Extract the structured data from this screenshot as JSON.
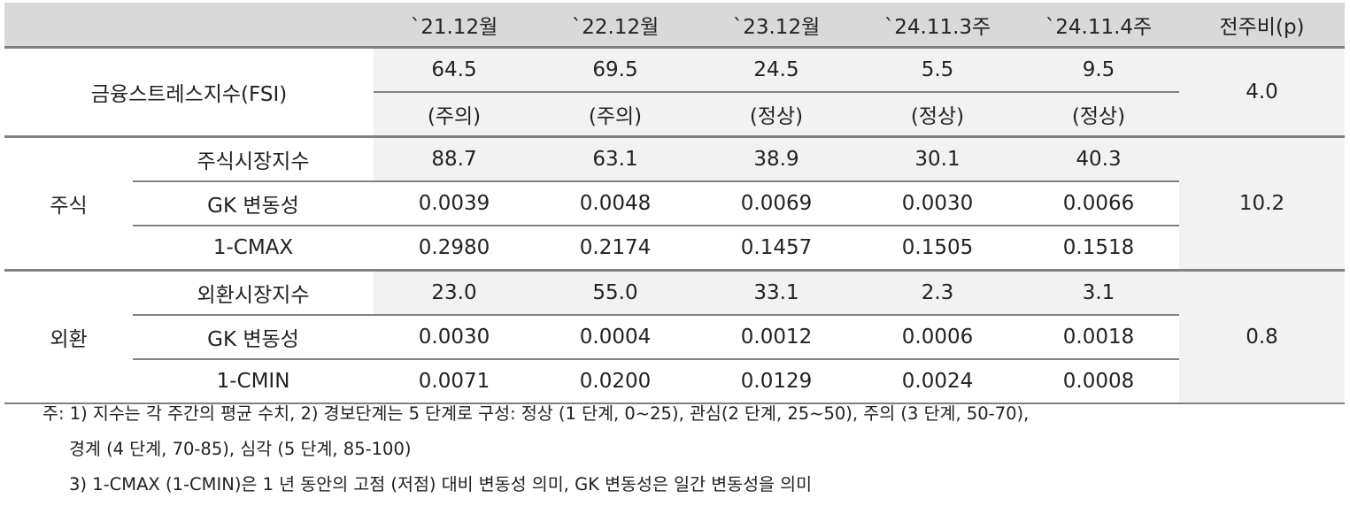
{
  "header": {
    "columns": [
      "`21.12월",
      "`22.12월",
      "`23.12월",
      "`24.11.3주",
      "`24.11.4주",
      "전주비(p)"
    ]
  },
  "fsi": {
    "label": "금융스트레스지수(FSI)",
    "values": [
      "64.5",
      "69.5",
      "24.5",
      "5.5",
      "9.5"
    ],
    "levels": [
      "(주의)",
      "(주의)",
      "(정상)",
      "(정상)",
      "(정상)"
    ],
    "change": "4.0"
  },
  "stock": {
    "label": "주식",
    "change": "10.2",
    "rows": [
      {
        "label": "주식시장지수",
        "values": [
          "88.7",
          "63.1",
          "38.9",
          "30.1",
          "40.3"
        ]
      },
      {
        "label": "GK 변동성",
        "values": [
          "0.0039",
          "0.0048",
          "0.0069",
          "0.0030",
          "0.0066"
        ]
      },
      {
        "label": "1-CMAX",
        "values": [
          "0.2980",
          "0.2174",
          "0.1457",
          "0.1505",
          "0.1518"
        ]
      }
    ]
  },
  "fx": {
    "label": "외환",
    "change": "0.8",
    "rows": [
      {
        "label": "외환시장지수",
        "values": [
          "23.0",
          "55.0",
          "33.1",
          "2.3",
          "3.1"
        ]
      },
      {
        "label": "GK 변동성",
        "values": [
          "0.0030",
          "0.0004",
          "0.0012",
          "0.0006",
          "0.0018"
        ]
      },
      {
        "label": "1-CMIN",
        "values": [
          "0.0071",
          "0.0200",
          "0.0129",
          "0.0024",
          "0.0008"
        ]
      }
    ]
  },
  "notes": {
    "line1": "주: 1) 지수는 각 주간의 평균 수치, 2) 경보단계는 5 단계로 구성: 정상 (1 단계, 0~25), 관심(2 단계, 25~50), 주의 (3 단계, 50-70),",
    "line2": "경계 (4 단계, 70-85), 심각 (5 단계, 85-100)",
    "line3": "3) 1-CMAX (1-CMIN)은 1 년 동안의 고점 (저점) 대비 변동성 의미, GK 변동성은 일간 변동성을 의미"
  }
}
